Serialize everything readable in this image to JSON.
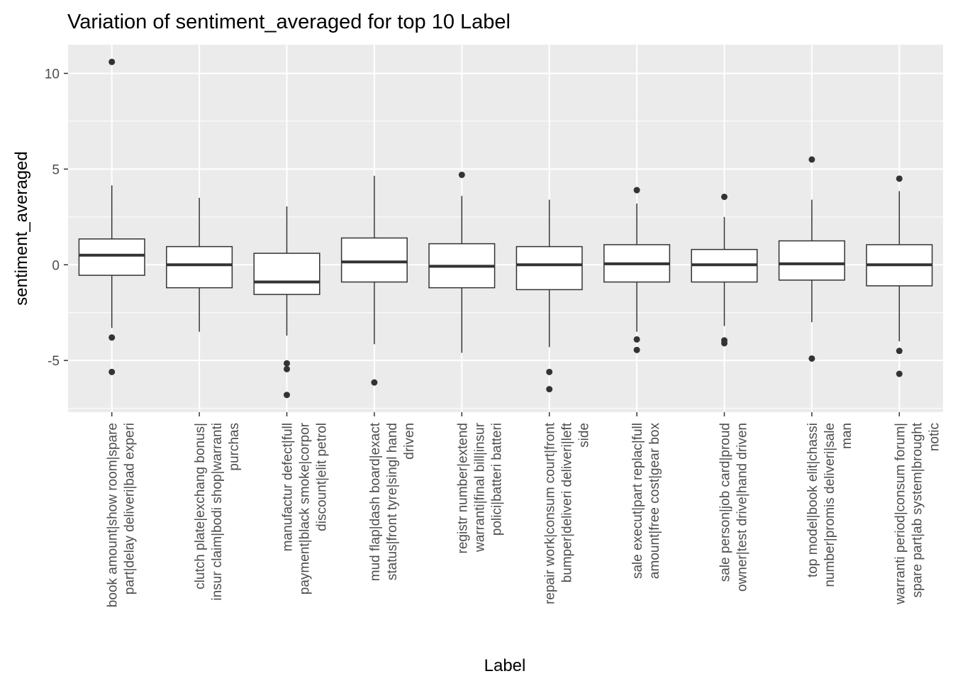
{
  "chart_data": {
    "type": "boxplot",
    "title": "Variation of  sentiment_averaged for top 10 Label",
    "xlabel": "Label",
    "ylabel": "sentiment_averaged",
    "ylim": [
      -7.7,
      11.5
    ],
    "y_ticks": [
      -5,
      0,
      5,
      10
    ],
    "y_tick_labels": [
      "-5",
      "0",
      "5",
      "10"
    ],
    "grid": true,
    "background": "#ebebeb",
    "box_fill": "#ffffff",
    "line_color": "#333333",
    "categories": [
      {
        "label_lines": [
          "book amount|show room|spare",
          "part|delay deliveri|bad experi"
        ],
        "whisker_low": -3.3,
        "q1": -0.55,
        "median": 0.5,
        "q3": 1.35,
        "whisker_high": 4.15,
        "outliers": [
          10.6,
          -3.8,
          -5.6
        ]
      },
      {
        "label_lines": [
          "clutch plate|exchang bonus|",
          "insur claim|bodi shop|warranti",
          "purchas"
        ],
        "whisker_low": -3.5,
        "q1": -1.2,
        "median": 0.0,
        "q3": 0.95,
        "whisker_high": 3.5,
        "outliers": []
      },
      {
        "label_lines": [
          "manufactur defect|full",
          "payment|black smoke|corpor",
          "discount|elit petrol"
        ],
        "whisker_low": -3.7,
        "q1": -1.55,
        "median": -0.9,
        "q3": 0.6,
        "whisker_high": 3.05,
        "outliers": [
          -5.15,
          -5.45,
          -6.8
        ]
      },
      {
        "label_lines": [
          "mud flap|dash board|exact",
          "status|front tyre|singl hand",
          "driven"
        ],
        "whisker_low": -4.15,
        "q1": -0.9,
        "median": 0.15,
        "q3": 1.4,
        "whisker_high": 4.65,
        "outliers": [
          -6.15
        ]
      },
      {
        "label_lines": [
          "registr number|extend",
          "warranti|final bill|insur",
          "polici|batteri batteri"
        ],
        "whisker_low": -4.6,
        "q1": -1.2,
        "median": -0.08,
        "q3": 1.1,
        "whisker_high": 3.6,
        "outliers": [
          4.7
        ]
      },
      {
        "label_lines": [
          "repair work|consum court|front",
          "bumper|deliveri deliveri|left",
          "side"
        ],
        "whisker_low": -4.3,
        "q1": -1.3,
        "median": 0.0,
        "q3": 0.95,
        "whisker_high": 3.4,
        "outliers": [
          -5.6,
          -6.5
        ]
      },
      {
        "label_lines": [
          "sale execut|part replac|full",
          "amount|free cost|gear box"
        ],
        "whisker_low": -3.5,
        "q1": -0.9,
        "median": 0.05,
        "q3": 1.05,
        "whisker_high": 3.2,
        "outliers": [
          3.9,
          -3.9,
          -4.45
        ]
      },
      {
        "label_lines": [
          "sale person|job card|proud",
          "owner|test drive|hand driven"
        ],
        "whisker_low": -3.2,
        "q1": -0.9,
        "median": 0.0,
        "q3": 0.8,
        "whisker_high": 2.5,
        "outliers": [
          3.55,
          -3.95,
          -4.1
        ]
      },
      {
        "label_lines": [
          "top model|book elit|chassi",
          "number|promis deliveri|sale",
          "man"
        ],
        "whisker_low": -3.0,
        "q1": -0.8,
        "median": 0.05,
        "q3": 1.25,
        "whisker_high": 3.4,
        "outliers": [
          5.5,
          -4.9
        ]
      },
      {
        "label_lines": [
          "warranti period|consum forum|",
          "spare part|ab system|brought",
          "notic"
        ],
        "whisker_low": -4.0,
        "q1": -1.1,
        "median": 0.0,
        "q3": 1.05,
        "whisker_high": 3.85,
        "outliers": [
          4.5,
          -4.5,
          -5.7
        ]
      }
    ]
  }
}
